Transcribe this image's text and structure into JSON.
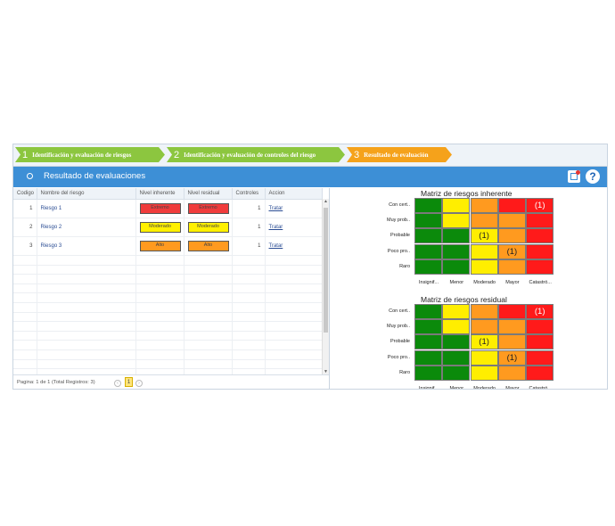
{
  "wizard": {
    "steps": [
      {
        "num": "1",
        "label": "Identificación y evaluación de riesgos"
      },
      {
        "num": "2",
        "label": "Identificación y evaluación de controles del riesgo"
      },
      {
        "num": "3",
        "label": "Resultado de evaluación"
      }
    ]
  },
  "header": {
    "title": "Resultado de evaluaciones"
  },
  "grid": {
    "columns": [
      "Codigo",
      "Nombre del riesgo",
      "Nivel inherente",
      "Nivel residual",
      "Controles",
      "Accion"
    ],
    "rows": [
      {
        "code": "1",
        "name": "Riesgo 1",
        "inherent": "Extremo",
        "residual": "Extremo",
        "controls": "1",
        "action": "Tratar"
      },
      {
        "code": "2",
        "name": "Riesgo 2",
        "inherent": "Moderado",
        "residual": "Moderado",
        "controls": "1",
        "action": "Tratar"
      },
      {
        "code": "3",
        "name": "Riesgo 3",
        "inherent": "Alto",
        "residual": "Alto",
        "controls": "1",
        "action": "Tratar"
      }
    ],
    "pager_text": "Pagina: 1 de 1 (Total Registros: 3)",
    "current_page": "1"
  },
  "level_colors": {
    "Extremo": "#f03c3c",
    "Moderado": "#fff000",
    "Alto": "#ff9a1f"
  },
  "palette": {
    "G": "#0b8a0b",
    "Y": "#ffee00",
    "O": "#ff9a1f",
    "R": "#ff1a1a"
  },
  "matrices": [
    {
      "title": "Matriz de riesgos inherente",
      "rows": [
        "Con cert..",
        "Muy prob..",
        "Probable",
        "Poco pro..",
        "Raro"
      ],
      "cols": [
        "Insignif...",
        "Menor",
        "Moderado",
        "Mayor",
        "Catastró..."
      ],
      "colors": [
        [
          "G",
          "Y",
          "O",
          "R",
          "R"
        ],
        [
          "G",
          "Y",
          "O",
          "O",
          "R"
        ],
        [
          "G",
          "G",
          "Y",
          "O",
          "R"
        ],
        [
          "G",
          "G",
          "Y",
          "O",
          "R"
        ],
        [
          "G",
          "G",
          "Y",
          "O",
          "R"
        ]
      ],
      "counts": [
        [
          "",
          "",
          "",
          "",
          "(1)"
        ],
        [
          "",
          "",
          "",
          "",
          ""
        ],
        [
          "",
          "",
          "(1)",
          "",
          ""
        ],
        [
          "",
          "",
          "",
          "(1)",
          ""
        ],
        [
          "",
          "",
          "",
          "",
          ""
        ]
      ]
    },
    {
      "title": "Matriz de riesgos residual",
      "rows": [
        "Con cert..",
        "Muy prob..",
        "Probable",
        "Poco pro..",
        "Raro"
      ],
      "cols": [
        "Insignif...",
        "Menor",
        "Moderado",
        "Mayor",
        "Catastró..."
      ],
      "colors": [
        [
          "G",
          "Y",
          "O",
          "R",
          "R"
        ],
        [
          "G",
          "Y",
          "O",
          "O",
          "R"
        ],
        [
          "G",
          "G",
          "Y",
          "O",
          "R"
        ],
        [
          "G",
          "G",
          "Y",
          "O",
          "R"
        ],
        [
          "G",
          "G",
          "Y",
          "O",
          "R"
        ]
      ],
      "counts": [
        [
          "",
          "",
          "",
          "",
          "(1)"
        ],
        [
          "",
          "",
          "",
          "",
          ""
        ],
        [
          "",
          "",
          "(1)",
          "",
          ""
        ],
        [
          "",
          "",
          "",
          "(1)",
          ""
        ],
        [
          "",
          "",
          "",
          "",
          ""
        ]
      ]
    }
  ]
}
